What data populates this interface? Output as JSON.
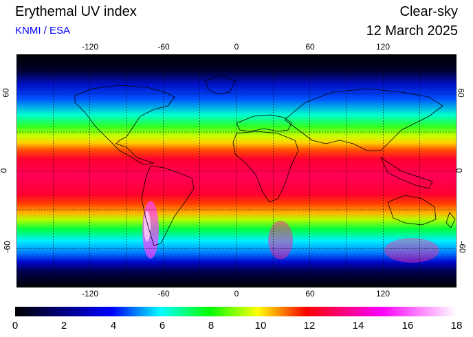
{
  "header": {
    "title": "Erythemal UV index",
    "credit": "KNMI / ESA",
    "product": "Clear-sky",
    "date": "12 March 2025"
  },
  "map": {
    "longitude_labels": [
      "-120",
      "-60",
      "0",
      "60",
      "120"
    ],
    "latitude_labels": [
      "60",
      "0",
      "-60"
    ],
    "projection": "equirectangular",
    "gridlines": "dotted, every 30°",
    "coastlines": "black outline"
  },
  "colorbar": {
    "tick_labels": [
      "0",
      "2",
      "4",
      "6",
      "8",
      "10",
      "12",
      "14",
      "16",
      "18"
    ],
    "range": [
      0,
      18
    ],
    "colors": [
      "#000000",
      "#0000ff",
      "#00ffff",
      "#00ff00",
      "#ffff00",
      "#ff0000",
      "#ff00ff",
      "#ffffff"
    ]
  }
}
